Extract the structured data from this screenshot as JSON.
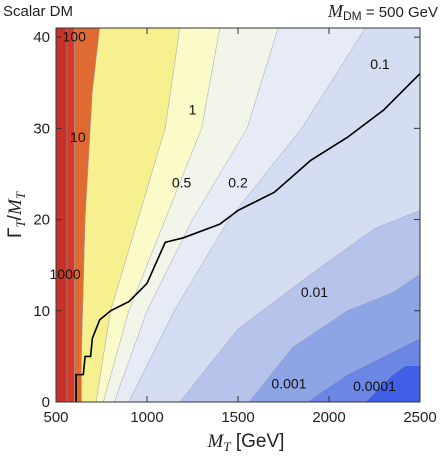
{
  "chart_data": {
    "type": "contour",
    "title_left": "Scalar DM",
    "title_right_symbol": "M",
    "title_right_sub": "DM",
    "title_right_value": " = 500 GeV",
    "xlabel_symbol": "M",
    "xlabel_sub": "T",
    "xlabel_unit": " [GeV]",
    "ylabel_symbol": "Γ",
    "ylabel_sub": "T",
    "ylabel_den_symbol": "M",
    "ylabel_den_sub": "T",
    "xlim": [
      500,
      2500
    ],
    "ylim": [
      0,
      41
    ],
    "x_ticks": [
      500,
      1000,
      1500,
      2000,
      2500
    ],
    "y_ticks": [
      0,
      10,
      20,
      30,
      40
    ],
    "x_tick_labels": [
      "500",
      "1000",
      "1500",
      "2000",
      "2500"
    ],
    "y_tick_labels": [
      "0",
      "10",
      "20",
      "30",
      "40"
    ],
    "contour_levels": [
      {
        "value": "1000",
        "color": "#e06b32",
        "boundary": [
          [
            600,
            0
          ],
          [
            600,
            41
          ]
        ]
      },
      {
        "value": "100",
        "color": "#d23a2a",
        "boundary": [
          [
            560,
            0
          ],
          [
            560,
            41
          ]
        ]
      },
      {
        "value": "10",
        "color": "#f7f08f",
        "boundary": [
          [
            640,
            0
          ],
          [
            640,
            5
          ],
          [
            660,
            20
          ],
          [
            700,
            34
          ],
          [
            740,
            41
          ]
        ]
      },
      {
        "value": "1",
        "color": "#fbfac9",
        "boundary": [
          [
            720,
            0
          ],
          [
            800,
            10
          ],
          [
            950,
            20
          ],
          [
            1100,
            30
          ],
          [
            1180,
            41
          ]
        ]
      },
      {
        "value": "0.5",
        "color": "#f4f5ea",
        "boundary": [
          [
            760,
            0
          ],
          [
            900,
            10
          ],
          [
            1100,
            20
          ],
          [
            1300,
            30
          ],
          [
            1400,
            41
          ]
        ]
      },
      {
        "value": "0.2",
        "color": "#e6ebf6",
        "boundary": [
          [
            820,
            0
          ],
          [
            1000,
            10
          ],
          [
            1250,
            20
          ],
          [
            1550,
            30
          ],
          [
            1720,
            41
          ]
        ]
      },
      {
        "value": "0.1",
        "color": "#d5ddf3",
        "boundary": [
          [
            900,
            0
          ],
          [
            1150,
            10
          ],
          [
            1450,
            20
          ],
          [
            1850,
            30
          ],
          [
            2200,
            41
          ]
        ]
      },
      {
        "value": "0.01",
        "color": "#b6c4ec",
        "boundary": [
          [
            1180,
            0
          ],
          [
            1500,
            8
          ],
          [
            1900,
            14
          ],
          [
            2250,
            19
          ],
          [
            2500,
            21
          ]
        ]
      },
      {
        "value": "0.001",
        "color": "#8ea4e5",
        "boundary": [
          [
            1560,
            0
          ],
          [
            1800,
            6
          ],
          [
            2100,
            10
          ],
          [
            2350,
            12
          ],
          [
            2500,
            14
          ]
        ]
      },
      {
        "value": "0.0001",
        "color": "#6b86e4",
        "boundary": [
          [
            1880,
            0
          ],
          [
            2100,
            3
          ],
          [
            2300,
            5
          ],
          [
            2500,
            7
          ]
        ]
      },
      {
        "value": "",
        "color": "#3e5fe6",
        "boundary": [
          [
            2200,
            0
          ],
          [
            2350,
            3
          ],
          [
            2420,
            4
          ],
          [
            2500,
            4
          ]
        ]
      }
    ],
    "exclusion_line": [
      [
        610,
        0
      ],
      [
        610,
        3
      ],
      [
        650,
        3
      ],
      [
        660,
        5
      ],
      [
        690,
        5
      ],
      [
        700,
        7
      ],
      [
        740,
        9
      ],
      [
        800,
        10
      ],
      [
        900,
        11
      ],
      [
        1000,
        13
      ],
      [
        1100,
        17.5
      ],
      [
        1200,
        18
      ],
      [
        1400,
        19.5
      ],
      [
        1500,
        21
      ],
      [
        1700,
        23
      ],
      [
        1900,
        26.5
      ],
      [
        2100,
        29
      ],
      [
        2300,
        32
      ],
      [
        2400,
        34
      ],
      [
        2500,
        36
      ]
    ],
    "labels": [
      {
        "text": "100",
        "x": 600,
        "y": 39.5
      },
      {
        "text": "10",
        "x": 620,
        "y": 28.5
      },
      {
        "text": "1",
        "x": 1250,
        "y": 31.5
      },
      {
        "text": "0.5",
        "x": 1190,
        "y": 23.5
      },
      {
        "text": "0.2",
        "x": 1500,
        "y": 23.5
      },
      {
        "text": "0.1",
        "x": 2280,
        "y": 36.5
      },
      {
        "text": "1000",
        "x": 550,
        "y": 13.5
      },
      {
        "text": "0.01",
        "x": 1920,
        "y": 11.5
      },
      {
        "text": "0.001",
        "x": 1780,
        "y": 1.5
      },
      {
        "text": "0.0001",
        "x": 2250,
        "y": 1.2
      }
    ]
  }
}
